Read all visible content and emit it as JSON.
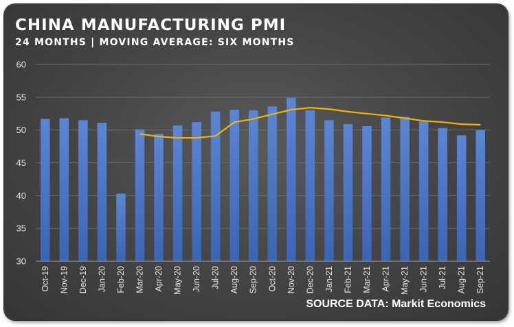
{
  "header": {
    "title": "CHINA MANUFACTURING PMI",
    "subtitle": "24 MONTHS | MOVING AVERAGE: SIX MONTHS"
  },
  "source_label": "SOURCE DATA: Markit Economics",
  "colors": {
    "bar": "#4472c4",
    "moving_average": "#f0b400",
    "grid": "#6e6e6e",
    "text": "#ffffff"
  },
  "chart_data": {
    "type": "bar",
    "title": "CHINA MANUFACTURING PMI",
    "subtitle": "24 MONTHS | MOVING AVERAGE: SIX MONTHS",
    "categories": [
      "Oct-19",
      "Nov-19",
      "Dec-19",
      "Jan-20",
      "Feb-20",
      "Mar-20",
      "Apr-20",
      "May-20",
      "Jun-20",
      "Jul-20",
      "Aug-20",
      "Sep-20",
      "Oct-20",
      "Nov-20",
      "Dec-20",
      "Jan-21",
      "Feb-21",
      "Mar-21",
      "Apr-21",
      "May-21",
      "Jun-21",
      "Jul-21",
      "Aug-21",
      "Sep-21"
    ],
    "series": [
      {
        "type": "bar",
        "values": [
          51.7,
          51.8,
          51.5,
          51.1,
          40.3,
          50.1,
          49.4,
          50.7,
          51.2,
          52.8,
          53.1,
          53.0,
          53.6,
          54.9,
          53.0,
          51.5,
          50.9,
          50.6,
          51.9,
          52.0,
          51.3,
          50.3,
          49.2,
          50.0
        ]
      },
      {
        "type": "line",
        "values": [
          null,
          null,
          null,
          null,
          null,
          49.4,
          49.0,
          48.8,
          48.8,
          49.1,
          51.2,
          51.7,
          52.4,
          53.1,
          53.4,
          53.2,
          52.8,
          52.5,
          52.2,
          51.8,
          51.4,
          51.2,
          50.9,
          50.8
        ]
      }
    ],
    "ylim": [
      30,
      60
    ],
    "yticks": [
      30,
      35,
      40,
      45,
      50,
      55,
      60
    ],
    "xlabel": "",
    "ylabel": "",
    "grid": true,
    "legend": "none"
  }
}
